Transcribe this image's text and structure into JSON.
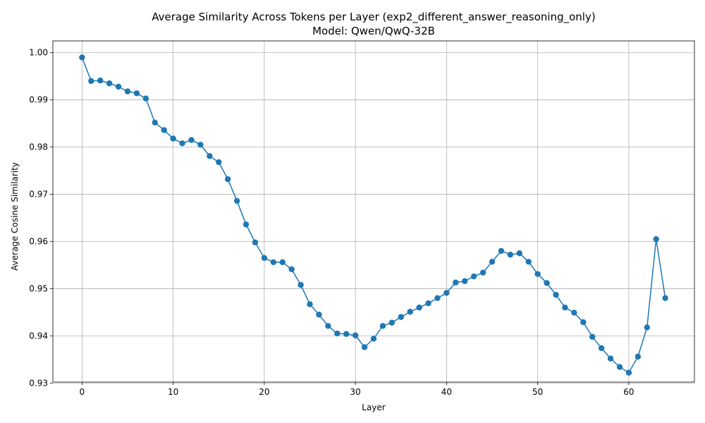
{
  "chart_data": {
    "type": "line",
    "title": "Average Similarity Across Tokens per Layer (exp2_different_answer_reasoning_only)",
    "subtitle": "Model: Qwen/QwQ-32B",
    "xlabel": "Layer",
    "ylabel": "Average Cosine Similarity",
    "xlim": [
      -3.2,
      67.2
    ],
    "ylim": [
      0.9302,
      1.0025
    ],
    "xticks": [
      0,
      10,
      20,
      30,
      40,
      50,
      60
    ],
    "xtick_labels": [
      "0",
      "10",
      "20",
      "30",
      "40",
      "50",
      "60"
    ],
    "yticks": [
      0.93,
      0.94,
      0.95,
      0.96,
      0.97,
      0.98,
      0.99,
      1.0
    ],
    "ytick_labels": [
      "0.93",
      "0.94",
      "0.95",
      "0.96",
      "0.97",
      "0.98",
      "0.99",
      "1.00"
    ],
    "grid": true,
    "color": "#1f77b4",
    "marker": "circle",
    "x": [
      0,
      1,
      2,
      3,
      4,
      5,
      6,
      7,
      8,
      9,
      10,
      11,
      12,
      13,
      14,
      15,
      16,
      17,
      18,
      19,
      20,
      21,
      22,
      23,
      24,
      25,
      26,
      27,
      28,
      29,
      30,
      31,
      32,
      33,
      34,
      35,
      36,
      37,
      38,
      39,
      40,
      41,
      42,
      43,
      44,
      45,
      46,
      47,
      48,
      49,
      50,
      51,
      52,
      53,
      54,
      55,
      56,
      57,
      58,
      59,
      60,
      61,
      62,
      63,
      64
    ],
    "values": [
      0.999,
      0.994,
      0.9941,
      0.9935,
      0.9928,
      0.9918,
      0.9914,
      0.9903,
      0.9852,
      0.9836,
      0.9818,
      0.9808,
      0.9815,
      0.9805,
      0.9781,
      0.9768,
      0.9732,
      0.9686,
      0.9636,
      0.9598,
      0.9565,
      0.9556,
      0.9556,
      0.9541,
      0.9508,
      0.9467,
      0.9445,
      0.9421,
      0.9405,
      0.9404,
      0.9401,
      0.9376,
      0.9394,
      0.9421,
      0.9428,
      0.944,
      0.9451,
      0.946,
      0.9469,
      0.948,
      0.9491,
      0.9513,
      0.9516,
      0.9526,
      0.9534,
      0.9557,
      0.958,
      0.9572,
      0.9575,
      0.9557,
      0.9531,
      0.9512,
      0.9487,
      0.946,
      0.9449,
      0.9429,
      0.9398,
      0.9374,
      0.9352,
      0.9334,
      0.9322,
      0.9356,
      0.9418,
      0.9605,
      0.948
    ]
  }
}
